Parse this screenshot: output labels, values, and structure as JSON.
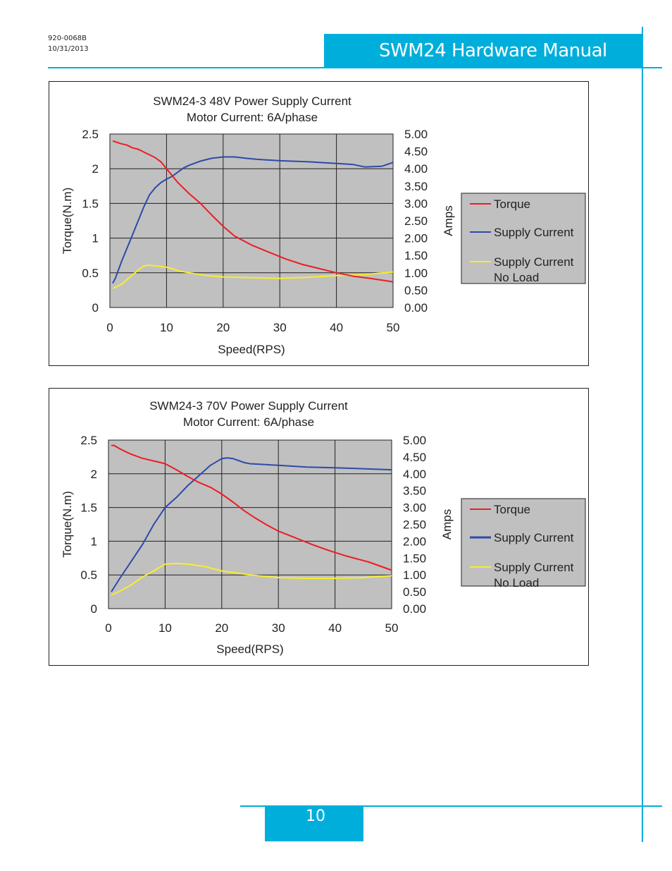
{
  "header": {
    "doc_number": "920-0068B",
    "date": "10/31/2013",
    "title": "SWM24 Hardware Manual"
  },
  "footer": {
    "page_number": "10"
  },
  "chart_data": [
    {
      "type": "line",
      "title": "SWM24-3 48V Power Supply Current",
      "subtitle": "Motor Current: 6A/phase",
      "xlabel": "Speed(RPS)",
      "ylabel": "Torque(N.m)",
      "y2label": "Amps",
      "xlim": [
        0,
        50
      ],
      "ylim": [
        0,
        2.5
      ],
      "y2lim": [
        0,
        5
      ],
      "x_ticks": [
        "0",
        "10",
        "20",
        "30",
        "40",
        "50"
      ],
      "y_ticks": [
        "0",
        "0.5",
        "1",
        "1.5",
        "2",
        "2.5"
      ],
      "y2_ticks": [
        "0.00",
        "0.50",
        "1.00",
        "1.50",
        "2.00",
        "2.50",
        "3.00",
        "3.50",
        "4.00",
        "4.50",
        "5.00"
      ],
      "legend": [
        "Torque",
        "Supply Current",
        "Supply Current",
        "No Load"
      ],
      "series": [
        {
          "name": "Torque",
          "axis": "left",
          "color": "#ee1c25",
          "x": [
            0.5,
            2,
            3,
            4,
            5,
            6,
            7,
            8,
            9,
            10,
            11,
            12,
            14,
            16,
            18,
            20,
            22,
            25,
            28,
            31,
            34,
            37,
            40,
            43,
            46,
            50
          ],
          "y": [
            2.4,
            2.36,
            2.34,
            2.3,
            2.28,
            2.24,
            2.2,
            2.16,
            2.1,
            2.0,
            1.9,
            1.8,
            1.64,
            1.5,
            1.33,
            1.17,
            1.03,
            0.9,
            0.8,
            0.7,
            0.62,
            0.56,
            0.5,
            0.45,
            0.42,
            0.37
          ]
        },
        {
          "name": "Supply Current",
          "axis": "right",
          "color": "#2e4aa8",
          "x": [
            0.5,
            1,
            2,
            3,
            4,
            5,
            6,
            7,
            8,
            9,
            10,
            11,
            12,
            13,
            14,
            16,
            18,
            20,
            22,
            24,
            26,
            30,
            35,
            40,
            43,
            45,
            48,
            50
          ],
          "y": [
            0.7,
            0.85,
            1.3,
            1.7,
            2.1,
            2.5,
            2.9,
            3.25,
            3.45,
            3.6,
            3.7,
            3.78,
            3.9,
            4.02,
            4.1,
            4.22,
            4.3,
            4.34,
            4.34,
            4.3,
            4.27,
            4.23,
            4.2,
            4.15,
            4.12,
            4.05,
            4.07,
            4.18
          ]
        },
        {
          "name": "Supply Current No Load",
          "axis": "right",
          "color": "#f6ee2e",
          "x": [
            0.5,
            2,
            3,
            4,
            5,
            6,
            7,
            8,
            9,
            10,
            11,
            12,
            14,
            17,
            20,
            25,
            30,
            35,
            40,
            45,
            50
          ],
          "y": [
            0.55,
            0.66,
            0.8,
            0.94,
            1.08,
            1.2,
            1.22,
            1.2,
            1.18,
            1.16,
            1.12,
            1.06,
            1.0,
            0.92,
            0.88,
            0.86,
            0.84,
            0.87,
            0.92,
            0.95,
            1.02
          ]
        }
      ]
    },
    {
      "type": "line",
      "title": "SWM24-3 70V Power Supply Current",
      "subtitle": "Motor Current: 6A/phase",
      "xlabel": "Speed(RPS)",
      "ylabel": "Torque(N.m)",
      "y2label": "Amps",
      "xlim": [
        0,
        50
      ],
      "ylim": [
        0,
        2.5
      ],
      "y2lim": [
        0,
        5
      ],
      "x_ticks": [
        "0",
        "10",
        "20",
        "30",
        "40",
        "50"
      ],
      "y_ticks": [
        "0",
        "0.5",
        "1",
        "1.5",
        "2",
        "2.5"
      ],
      "y2_ticks": [
        "0.00",
        "0.50",
        "1.00",
        "1.50",
        "2.00",
        "2.50",
        "3.00",
        "3.50",
        "4.00",
        "4.50",
        "5.00"
      ],
      "legend": [
        "Torque",
        "Supply Current",
        "Supply Current",
        "No Load"
      ],
      "series": [
        {
          "name": "Torque",
          "axis": "left",
          "color": "#ee1c25",
          "x": [
            0.5,
            1,
            2,
            3,
            4,
            5,
            6,
            7,
            8,
            9,
            10,
            12,
            14,
            16,
            18,
            20,
            22,
            24,
            26,
            28,
            30,
            33,
            36,
            39,
            42,
            46,
            50
          ],
          "y": [
            2.42,
            2.42,
            2.37,
            2.33,
            2.29,
            2.26,
            2.23,
            2.21,
            2.19,
            2.17,
            2.15,
            2.06,
            1.96,
            1.87,
            1.8,
            1.7,
            1.58,
            1.45,
            1.34,
            1.24,
            1.15,
            1.05,
            0.95,
            0.86,
            0.78,
            0.69,
            0.57
          ]
        },
        {
          "name": "Supply Current",
          "axis": "right",
          "color": "#2e4aa8",
          "x": [
            0.5,
            2,
            4,
            6,
            8,
            10,
            12,
            14,
            16,
            18,
            20,
            21,
            22,
            24,
            25,
            30,
            35,
            40,
            45,
            50
          ],
          "y": [
            0.5,
            0.9,
            1.4,
            1.9,
            2.5,
            3.0,
            3.3,
            3.65,
            3.95,
            4.25,
            4.45,
            4.47,
            4.45,
            4.33,
            4.3,
            4.25,
            4.2,
            4.18,
            4.15,
            4.12
          ]
        },
        {
          "name": "Supply Current No Load",
          "axis": "right",
          "color": "#f6ee2e",
          "x": [
            0.5,
            2,
            4,
            6,
            8,
            10,
            12,
            14,
            17,
            20,
            25,
            30,
            35,
            40,
            45,
            50
          ],
          "y": [
            0.4,
            0.52,
            0.7,
            0.94,
            1.12,
            1.32,
            1.34,
            1.32,
            1.25,
            1.12,
            1.0,
            0.92,
            0.9,
            0.9,
            0.92,
            0.98
          ]
        }
      ]
    }
  ]
}
